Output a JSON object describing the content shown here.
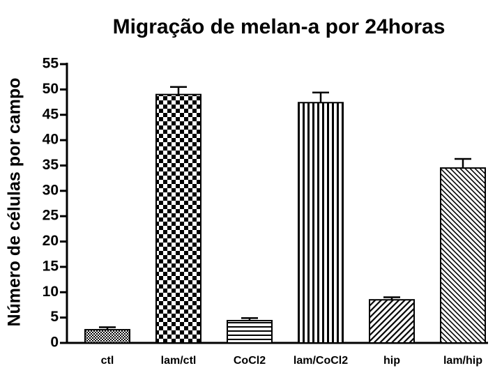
{
  "chart_data": {
    "type": "bar",
    "title": "Migração de melan-a por 24horas",
    "ylabel": "Número de células por campo",
    "categories": [
      "ctl",
      "lam/ctl",
      "CoCl2",
      "lam/CoCl2",
      "hip",
      "lam/hip"
    ],
    "values": [
      2.6,
      49,
      4.4,
      47.4,
      8.5,
      34.5
    ],
    "errors": [
      0.5,
      1.5,
      0.5,
      2,
      0.5,
      1.8
    ],
    "color": "#000000",
    "ylim": [
      0,
      55
    ],
    "yticks": [
      0,
      5,
      10,
      15,
      20,
      25,
      30,
      35,
      40,
      45,
      50,
      55
    ],
    "grid": false
  }
}
